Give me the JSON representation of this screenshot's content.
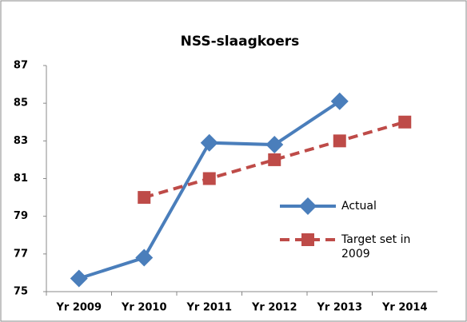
{
  "chart_data": {
    "type": "line",
    "title": "NSS-slaagkoers",
    "categories": [
      "Yr 2009",
      "Yr 2010",
      "Yr 2011",
      "Yr 2012",
      "Yr 2013",
      "Yr 2014"
    ],
    "series": [
      {
        "name": "Actual",
        "color": "#4a7ebb",
        "marker": "diamond",
        "dashed": false,
        "values": [
          75.7,
          76.8,
          82.9,
          82.8,
          85.1,
          null
        ]
      },
      {
        "name": "Target set in 2009",
        "color": "#be4b48",
        "marker": "square",
        "dashed": true,
        "values": [
          null,
          80,
          81,
          82,
          83,
          84
        ]
      }
    ],
    "ylim": [
      75,
      87
    ],
    "yticks": [
      75,
      77,
      79,
      81,
      83,
      85,
      87
    ],
    "grid": false,
    "legend": "right"
  }
}
